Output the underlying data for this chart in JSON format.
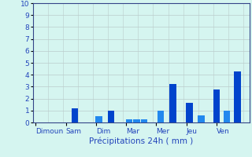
{
  "title": "",
  "xlabel": "Précipitations 24h ( mm )",
  "ylabel": "",
  "ylim": [
    0,
    10
  ],
  "yticks": [
    0,
    1,
    2,
    3,
    4,
    5,
    6,
    7,
    8,
    9,
    10
  ],
  "background_color": "#d5f5f0",
  "bar_color_dark": "#0033cc",
  "bar_color_light": "#3399ff",
  "grid_color": "#aabbcc",
  "day_labels": [
    "Dimoun",
    "Sam",
    "Dim",
    "Mar",
    "Mer",
    "Jeu",
    "Ven"
  ],
  "bars": [
    {
      "x": 1.3,
      "height": 1.2,
      "color": "#0044cc"
    },
    {
      "x": 2.1,
      "height": 0.55,
      "color": "#2288ee"
    },
    {
      "x": 2.5,
      "height": 1.0,
      "color": "#0044cc"
    },
    {
      "x": 3.1,
      "height": 0.25,
      "color": "#2288ee"
    },
    {
      "x": 3.35,
      "height": 0.25,
      "color": "#2288ee"
    },
    {
      "x": 3.6,
      "height": 0.25,
      "color": "#2288ee"
    },
    {
      "x": 4.15,
      "height": 1.0,
      "color": "#2288ee"
    },
    {
      "x": 4.55,
      "height": 3.2,
      "color": "#0044cc"
    },
    {
      "x": 5.1,
      "height": 1.65,
      "color": "#0044cc"
    },
    {
      "x": 5.5,
      "height": 0.6,
      "color": "#2288ee"
    },
    {
      "x": 6.0,
      "height": 2.75,
      "color": "#0044cc"
    },
    {
      "x": 6.35,
      "height": 1.0,
      "color": "#2288ee"
    },
    {
      "x": 6.7,
      "height": 4.3,
      "color": "#0044cc"
    }
  ],
  "bar_width": 0.22,
  "n_days": 7,
  "xlim": [
    -0.1,
    7.1
  ],
  "day_tick_positions": [
    0,
    1,
    2,
    3,
    4,
    5,
    6
  ],
  "tick_fontsize": 6.5,
  "label_fontsize": 7.5,
  "tick_color": "#2244bb",
  "label_color": "#2244bb",
  "spine_color": "#334488",
  "grid_major_color": "#bbcccc",
  "grid_minor_color": "#ccdddd"
}
